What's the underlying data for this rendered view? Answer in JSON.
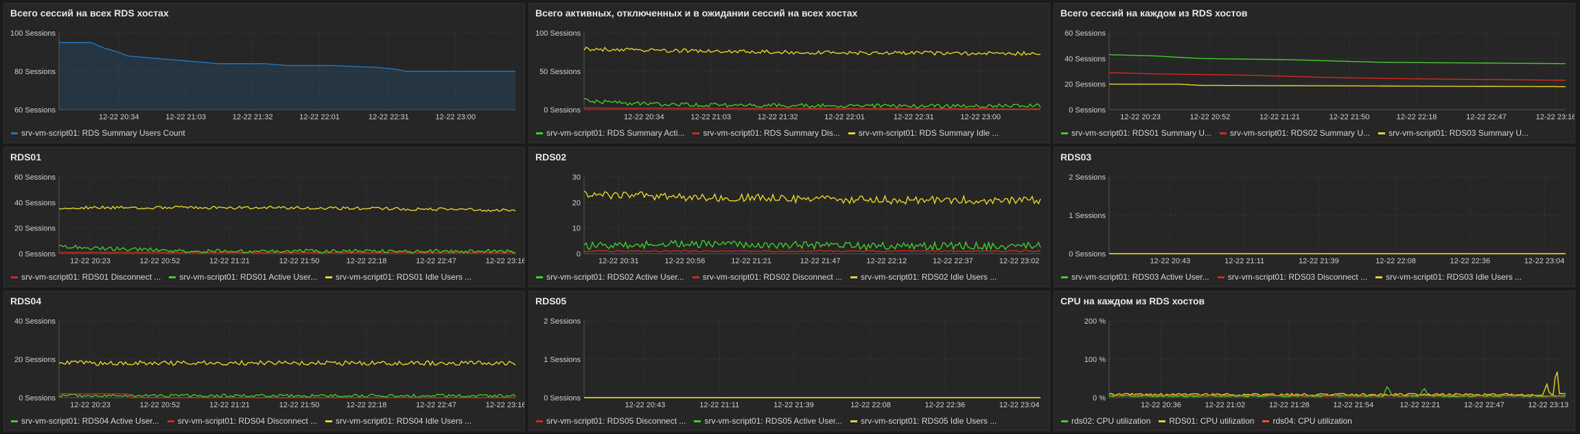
{
  "chart_data": [
    {
      "id": "p1",
      "type": "area",
      "title": "Всего сессий на всех RDS хостах",
      "unit": "Sessions",
      "ylim": [
        60,
        100
      ],
      "yticks": [
        60,
        80,
        100
      ],
      "xlim": [
        "12-22 20:08",
        "12-22 23:26"
      ],
      "xticks": [
        "12-22 20:34",
        "12-22 21:03",
        "12-22 21:32",
        "12-22 22:01",
        "12-22 22:31",
        "12-22 23:00"
      ],
      "series": [
        {
          "name": "srv-vm-script01: RDS Summary Users Count",
          "color": "#1f78c1",
          "fill": true,
          "noise": 0,
          "points": [
            [
              0,
              95
            ],
            [
              0.07,
              95
            ],
            [
              0.08,
              94
            ],
            [
              0.1,
              92
            ],
            [
              0.13,
              90
            ],
            [
              0.15,
              88
            ],
            [
              0.2,
              87
            ],
            [
              0.25,
              86
            ],
            [
              0.3,
              85
            ],
            [
              0.35,
              84
            ],
            [
              0.45,
              84
            ],
            [
              0.5,
              83
            ],
            [
              0.6,
              83
            ],
            [
              0.7,
              82
            ],
            [
              0.74,
              81
            ],
            [
              0.76,
              80
            ],
            [
              0.8,
              80
            ],
            [
              1,
              80
            ]
          ]
        }
      ]
    },
    {
      "id": "p2",
      "type": "line",
      "title": "Всего активных, отключенных и в ожидании сессий на всех хостах",
      "unit": "Sessions",
      "ylim": [
        0,
        100
      ],
      "yticks": [
        0,
        50,
        100
      ],
      "xlim": [
        "12-22 20:08",
        "12-22 23:26"
      ],
      "xticks": [
        "12-22 20:34",
        "12-22 21:03",
        "12-22 21:32",
        "12-22 22:01",
        "12-22 22:31",
        "12-22 23:00"
      ],
      "series": [
        {
          "name": "srv-vm-script01: RDS Summary Acti...",
          "color": "#3fcf2a",
          "noise": 2.5,
          "points": [
            [
              0,
              12
            ],
            [
              0.1,
              8
            ],
            [
              0.3,
              6
            ],
            [
              0.6,
              5
            ],
            [
              1,
              5
            ]
          ]
        },
        {
          "name": "srv-vm-script01: RDS Summary Dis...",
          "color": "#d42a1f",
          "noise": 0.3,
          "points": [
            [
              0,
              2
            ],
            [
              1,
              1
            ]
          ]
        },
        {
          "name": "srv-vm-script01: RDS Summary Idle ...",
          "color": "#e8d52b",
          "noise": 2.5,
          "points": [
            [
              0,
              79
            ],
            [
              0.3,
              76
            ],
            [
              0.6,
              74
            ],
            [
              1,
              73
            ]
          ]
        }
      ]
    },
    {
      "id": "p3",
      "type": "line",
      "title": "Всего сессий на каждом из RDS хостов",
      "unit": "Sessions",
      "ylim": [
        0,
        60
      ],
      "yticks": [
        0,
        20,
        40,
        60
      ],
      "xlim": [
        "12-22 20:10",
        "12-22 23:20"
      ],
      "xticks": [
        "12-22 20:23",
        "12-22 20:52",
        "12-22 21:21",
        "12-22 21:50",
        "12-22 22:18",
        "12-22 22:47",
        "12-22 23:16"
      ],
      "series": [
        {
          "name": "srv-vm-script01: RDS01 Summary U...",
          "color": "#3fcf2a",
          "noise": 0,
          "points": [
            [
              0,
              43
            ],
            [
              0.1,
              42
            ],
            [
              0.2,
              40
            ],
            [
              0.4,
              39
            ],
            [
              0.6,
              37
            ],
            [
              1,
              36
            ]
          ]
        },
        {
          "name": "srv-vm-script01: RDS02 Summary U...",
          "color": "#d42a1f",
          "noise": 0,
          "points": [
            [
              0,
              29
            ],
            [
              0.1,
              28
            ],
            [
              0.3,
              27
            ],
            [
              0.5,
              25
            ],
            [
              0.7,
              24
            ],
            [
              1,
              23
            ]
          ]
        },
        {
          "name": "srv-vm-script01: RDS03 Summary U...",
          "color": "#e8d52b",
          "noise": 0,
          "points": [
            [
              0,
              20
            ],
            [
              0.15,
              20
            ],
            [
              0.2,
              19
            ],
            [
              1,
              18
            ]
          ]
        }
      ]
    },
    {
      "id": "p4",
      "type": "line",
      "title": "RDS01",
      "unit": "Sessions",
      "ylim": [
        0,
        60
      ],
      "yticks": [
        0,
        20,
        40,
        60
      ],
      "xlim": [
        "12-22 20:10",
        "12-22 23:20"
      ],
      "xticks": [
        "12-22 20:23",
        "12-22 20:52",
        "12-22 21:21",
        "12-22 21:50",
        "12-22 22:18",
        "12-22 22:47",
        "12-22 23:16"
      ],
      "series": [
        {
          "name": "srv-vm-script01: RDS01 Disconnect ...",
          "color": "#d42a1f",
          "noise": 0.3,
          "points": [
            [
              0,
              1
            ],
            [
              1,
              1
            ]
          ]
        },
        {
          "name": "srv-vm-script01: RDS01 Active User...",
          "color": "#3fcf2a",
          "noise": 1.5,
          "points": [
            [
              0,
              6
            ],
            [
              0.1,
              4
            ],
            [
              0.3,
              2
            ],
            [
              1,
              2
            ]
          ]
        },
        {
          "name": "srv-vm-script01: RDS01 Idle Users ...",
          "color": "#e8d52b",
          "noise": 1.2,
          "points": [
            [
              0,
              36
            ],
            [
              0.5,
              36
            ],
            [
              1,
              34
            ]
          ]
        }
      ]
    },
    {
      "id": "p5",
      "type": "line",
      "title": "RDS02",
      "unit": "",
      "ylim": [
        0,
        30
      ],
      "yticks": [
        0,
        10,
        20,
        30
      ],
      "xlim": [
        "12-22 20:18",
        "12-22 23:10"
      ],
      "xticks": [
        "12-22 20:31",
        "12-22 20:56",
        "12-22 21:21",
        "12-22 21:47",
        "12-22 22:12",
        "12-22 22:37",
        "12-22 23:02"
      ],
      "series": [
        {
          "name": "srv-vm-script01: RDS02 Active User...",
          "color": "#3fcf2a",
          "noise": 1.5,
          "points": [
            [
              0,
              3
            ],
            [
              0.3,
              4
            ],
            [
              0.6,
              3
            ],
            [
              1,
              3
            ]
          ]
        },
        {
          "name": "srv-vm-script01: RDS02 Disconnect ...",
          "color": "#d42a1f",
          "noise": 0.3,
          "points": [
            [
              0,
              1
            ],
            [
              1,
              1
            ]
          ]
        },
        {
          "name": "srv-vm-script01: RDS02 Idle Users ...",
          "color": "#e8d52b",
          "noise": 1.6,
          "points": [
            [
              0,
              23
            ],
            [
              0.3,
              22
            ],
            [
              0.6,
              21
            ],
            [
              1,
              21
            ]
          ]
        }
      ]
    },
    {
      "id": "p6",
      "type": "line",
      "title": "RDS03",
      "unit": "Sessions",
      "ylim": [
        0,
        2
      ],
      "yticks": [
        0,
        1,
        2
      ],
      "xlim": [
        "12-22 20:20",
        "12-22 23:12"
      ],
      "xticks": [
        "12-22 20:43",
        "12-22 21:11",
        "12-22 21:39",
        "12-22 22:08",
        "12-22 22:36",
        "12-22 23:04"
      ],
      "series": [
        {
          "name": "srv-vm-script01: RDS03 Active User...",
          "color": "#3fcf2a",
          "noise": 0,
          "points": [
            [
              0,
              0
            ],
            [
              1,
              0
            ]
          ]
        },
        {
          "name": "srv-vm-script01: RDS03 Disconnect ...",
          "color": "#d42a1f",
          "noise": 0,
          "points": [
            [
              0,
              0
            ],
            [
              1,
              0
            ]
          ]
        },
        {
          "name": "srv-vm-script01: RDS03 Idle Users ...",
          "color": "#e8d52b",
          "noise": 0,
          "points": [
            [
              0,
              0
            ],
            [
              1,
              0
            ]
          ]
        }
      ]
    },
    {
      "id": "p7",
      "type": "line",
      "title": "RDS04",
      "unit": "Sessions",
      "ylim": [
        0,
        40
      ],
      "yticks": [
        0,
        20,
        40
      ],
      "xlim": [
        "12-22 20:10",
        "12-22 23:20"
      ],
      "xticks": [
        "12-22 20:23",
        "12-22 20:52",
        "12-22 21:21",
        "12-22 21:50",
        "12-22 22:18",
        "12-22 22:47",
        "12-22 23:16"
      ],
      "series": [
        {
          "name": "srv-vm-script01: RDS04 Active User...",
          "color": "#3fcf2a",
          "noise": 0.8,
          "points": [
            [
              0,
              1
            ],
            [
              1,
              1
            ]
          ]
        },
        {
          "name": "srv-vm-script01: RDS04 Disconnect ...",
          "color": "#d42a1f",
          "noise": 0,
          "points": [
            [
              0,
              2
            ],
            [
              0.15,
              2
            ],
            [
              0.16,
              0
            ],
            [
              1,
              0
            ]
          ]
        },
        {
          "name": "srv-vm-script01: RDS04 Idle Users ...",
          "color": "#e8d52b",
          "noise": 1.2,
          "points": [
            [
              0,
              18
            ],
            [
              0.5,
              18
            ],
            [
              1,
              18
            ]
          ]
        }
      ]
    },
    {
      "id": "p8",
      "type": "line",
      "title": "RDS05",
      "unit": "Sessions",
      "ylim": [
        0,
        2
      ],
      "yticks": [
        0,
        1,
        2
      ],
      "xlim": [
        "12-22 20:20",
        "12-22 23:12"
      ],
      "xticks": [
        "12-22 20:43",
        "12-22 21:11",
        "12-22 21:39",
        "12-22 22:08",
        "12-22 22:36",
        "12-22 23:04"
      ],
      "series": [
        {
          "name": "srv-vm-script01: RDS05 Disconnect ...",
          "color": "#d42a1f",
          "noise": 0,
          "points": [
            [
              0,
              0
            ],
            [
              1,
              0
            ]
          ]
        },
        {
          "name": "srv-vm-script01: RDS05 Active User...",
          "color": "#3fcf2a",
          "noise": 0,
          "points": [
            [
              0,
              0
            ],
            [
              1,
              0
            ]
          ]
        },
        {
          "name": "srv-vm-script01: RDS05 Idle Users ...",
          "color": "#e8d52b",
          "noise": 0,
          "points": [
            [
              0,
              0
            ],
            [
              1,
              0
            ]
          ]
        }
      ]
    },
    {
      "id": "p9",
      "type": "line",
      "title": "CPU на каждом из RDS хостов",
      "unit": "%",
      "ylim": [
        0,
        200
      ],
      "yticks": [
        0,
        100,
        200
      ],
      "xlim": [
        "12-22 20:15",
        "12-22 23:20"
      ],
      "xticks": [
        "12-22 20:36",
        "12-22 21:02",
        "12-22 21:28",
        "12-22 21:54",
        "12-22 22:21",
        "12-22 22:47",
        "12-22 23:13"
      ],
      "series": [
        {
          "name": "rds02: CPU utilization",
          "color": "#3fcf2a",
          "noise": 1.5,
          "points": [
            [
              0,
              4
            ],
            [
              0.6,
              4
            ],
            [
              0.61,
              30
            ],
            [
              0.62,
              4
            ],
            [
              0.68,
              4
            ],
            [
              0.69,
              25
            ],
            [
              0.7,
              4
            ],
            [
              1,
              4
            ]
          ]
        },
        {
          "name": "RDS01: CPU utilization",
          "color": "#e8d52b",
          "noise": 3,
          "points": [
            [
              0,
              8
            ],
            [
              0.95,
              8
            ],
            [
              0.96,
              40
            ],
            [
              0.965,
              8
            ],
            [
              0.975,
              8
            ],
            [
              0.98,
              100
            ],
            [
              0.985,
              10
            ],
            [
              1,
              8
            ]
          ]
        },
        {
          "name": "rds04: CPU utilization",
          "color": "#e6582a",
          "noise": 1.5,
          "points": [
            [
              0,
              6
            ],
            [
              1,
              5
            ]
          ]
        }
      ]
    }
  ]
}
